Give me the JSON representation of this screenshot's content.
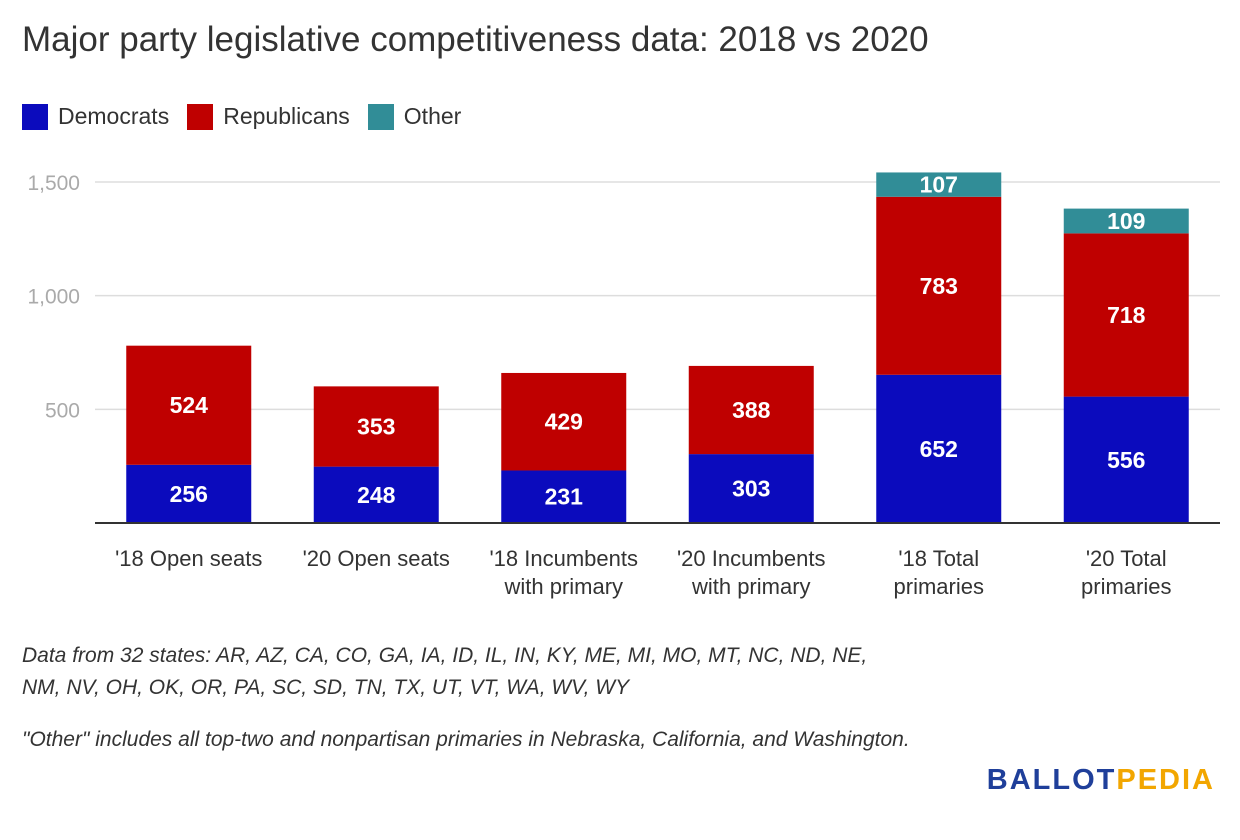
{
  "title": "Major party legislative competitiveness data: 2018 vs 2020",
  "legend": [
    {
      "label": "Democrats",
      "color": "#0b0bbd"
    },
    {
      "label": "Republicans",
      "color": "#bf0000"
    },
    {
      "label": "Other",
      "color": "#318d97"
    }
  ],
  "chart_data": {
    "type": "bar",
    "stacked": true,
    "title": "Major party legislative competitiveness data: 2018 vs 2020",
    "categories": [
      [
        "'18 Open seats"
      ],
      [
        "'20 Open seats"
      ],
      [
        "'18 Incumbents",
        "with primary"
      ],
      [
        "'20 Incumbents",
        "with primary"
      ],
      [
        "'18 Total",
        "primaries"
      ],
      [
        "'20 Total",
        "primaries"
      ]
    ],
    "series": [
      {
        "name": "Democrats",
        "color": "#0b0bbd",
        "values": [
          256,
          248,
          231,
          303,
          652,
          556
        ]
      },
      {
        "name": "Republicans",
        "color": "#bf0000",
        "values": [
          524,
          353,
          429,
          388,
          783,
          718
        ]
      },
      {
        "name": "Other",
        "color": "#318d97",
        "values": [
          null,
          null,
          null,
          null,
          107,
          109
        ]
      }
    ],
    "yticks": [
      500,
      1000,
      1500
    ],
    "ytick_labels": [
      "500",
      "1,000",
      "1,500"
    ],
    "ylim": [
      0,
      1500
    ],
    "xlabel": "",
    "ylabel": "",
    "grid": true
  },
  "notes": {
    "states": "Data from 32 states: AR, AZ, CA, CO, GA, IA, ID, IL, IN, KY, ME, MI, MO, MT, NC, ND, NE, NM, NV, OH, OK, OR, PA, SC, SD, TN, TX, UT, VT, WA, WV, WY",
    "other": "\"Other\" includes all top-two and nonpartisan primaries in Nebraska, California, and Washington."
  },
  "logo": {
    "part1": "BALLOT",
    "part2": "PEDIA"
  }
}
